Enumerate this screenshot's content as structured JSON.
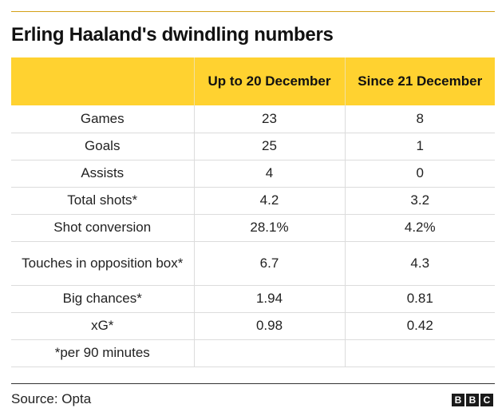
{
  "chart_data": {
    "type": "table",
    "title": "Erling Haaland's dwindling numbers",
    "columns": [
      "",
      "Up to 20 December",
      "Since 21 December"
    ],
    "rows": [
      {
        "label": "Games",
        "values": [
          "23",
          "8"
        ]
      },
      {
        "label": "Goals",
        "values": [
          "25",
          "1"
        ]
      },
      {
        "label": "Assists",
        "values": [
          "4",
          "0"
        ]
      },
      {
        "label": "Total shots*",
        "values": [
          "4.2",
          "3.2"
        ]
      },
      {
        "label": "Shot conversion",
        "values": [
          "28.1%",
          "4.2%"
        ]
      },
      {
        "label": "Touches in opposition box*",
        "values": [
          "6.7",
          "4.3"
        ]
      },
      {
        "label": "Big chances*",
        "values": [
          "1.94",
          "0.81"
        ]
      },
      {
        "label": "xG*",
        "values": [
          "0.98",
          "0.42"
        ]
      }
    ],
    "footnote": "*per 90 minutes",
    "source": "Source: Opta"
  },
  "logo": {
    "letters": [
      "B",
      "B",
      "C"
    ]
  },
  "colors": {
    "header_bg": "#ffd230",
    "rule": "#d4a017",
    "logo_bg": "#1a1a1a"
  }
}
